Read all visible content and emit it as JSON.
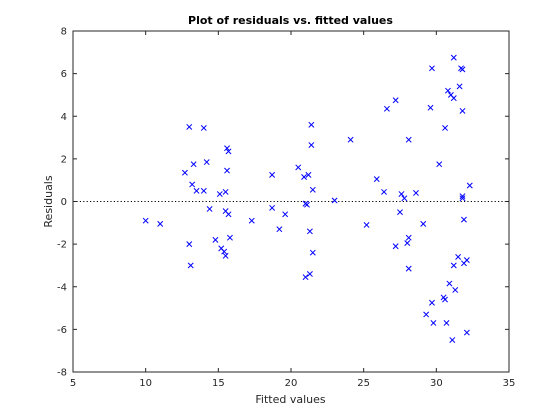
{
  "chart_data": {
    "type": "scatter",
    "title": "Plot of residuals vs. fitted values",
    "xlabel": "Fitted values",
    "ylabel": "Residuals",
    "xlim": [
      5,
      35
    ],
    "ylim": [
      -8,
      8
    ],
    "xticks": [
      "5",
      "10",
      "15",
      "20",
      "25",
      "30",
      "35"
    ],
    "yticks": [
      "-8",
      "-6",
      "-4",
      "-2",
      "0",
      "2",
      "4",
      "6",
      "8"
    ],
    "grid": false,
    "marker": "x",
    "marker_color": "#0000ff",
    "reference_line": {
      "y": 0,
      "style": "dotted",
      "color": "#000000"
    },
    "points": [
      [
        10.0,
        -0.9
      ],
      [
        11.0,
        -1.05
      ],
      [
        12.7,
        1.35
      ],
      [
        13.0,
        3.5
      ],
      [
        13.0,
        -2.0
      ],
      [
        13.1,
        -3.0
      ],
      [
        13.2,
        0.8
      ],
      [
        13.3,
        1.75
      ],
      [
        13.5,
        0.5
      ],
      [
        14.0,
        3.45
      ],
      [
        14.0,
        0.5
      ],
      [
        14.2,
        1.85
      ],
      [
        14.4,
        -0.35
      ],
      [
        14.8,
        -1.8
      ],
      [
        15.1,
        0.35
      ],
      [
        15.2,
        -2.2
      ],
      [
        15.4,
        -2.35
      ],
      [
        15.5,
        0.45
      ],
      [
        15.5,
        -0.45
      ],
      [
        15.5,
        -2.55
      ],
      [
        15.6,
        1.45
      ],
      [
        15.6,
        2.5
      ],
      [
        15.7,
        2.35
      ],
      [
        15.7,
        -0.6
      ],
      [
        15.8,
        -1.7
      ],
      [
        17.3,
        -0.9
      ],
      [
        18.7,
        1.25
      ],
      [
        18.7,
        -0.3
      ],
      [
        19.2,
        -1.3
      ],
      [
        19.6,
        -0.6
      ],
      [
        20.5,
        1.6
      ],
      [
        20.9,
        1.15
      ],
      [
        21.0,
        -0.1
      ],
      [
        21.0,
        -3.55
      ],
      [
        21.1,
        -0.15
      ],
      [
        21.2,
        1.25
      ],
      [
        21.3,
        -1.4
      ],
      [
        21.3,
        -3.4
      ],
      [
        21.4,
        3.6
      ],
      [
        21.4,
        2.65
      ],
      [
        21.5,
        0.55
      ],
      [
        21.5,
        -2.4
      ],
      [
        23.0,
        0.05
      ],
      [
        24.1,
        2.9
      ],
      [
        25.2,
        -1.1
      ],
      [
        25.9,
        1.05
      ],
      [
        26.4,
        0.45
      ],
      [
        26.6,
        4.35
      ],
      [
        27.2,
        4.75
      ],
      [
        27.2,
        -2.1
      ],
      [
        27.5,
        -0.5
      ],
      [
        27.6,
        0.35
      ],
      [
        27.8,
        0.15
      ],
      [
        28.0,
        -1.95
      ],
      [
        28.1,
        2.9
      ],
      [
        28.1,
        -1.7
      ],
      [
        28.1,
        -3.15
      ],
      [
        28.6,
        0.4
      ],
      [
        29.1,
        -1.05
      ],
      [
        29.3,
        -5.3
      ],
      [
        29.6,
        4.4
      ],
      [
        29.7,
        6.25
      ],
      [
        29.7,
        -4.75
      ],
      [
        29.8,
        -5.7
      ],
      [
        30.2,
        1.75
      ],
      [
        30.5,
        -4.5
      ],
      [
        30.6,
        3.45
      ],
      [
        30.6,
        -4.6
      ],
      [
        30.7,
        -5.7
      ],
      [
        30.8,
        5.2
      ],
      [
        30.9,
        -3.85
      ],
      [
        31.0,
        5.0
      ],
      [
        31.1,
        -6.5
      ],
      [
        31.2,
        6.75
      ],
      [
        31.2,
        4.85
      ],
      [
        31.2,
        -3.0
      ],
      [
        31.3,
        -4.15
      ],
      [
        31.5,
        -2.6
      ],
      [
        31.6,
        5.4
      ],
      [
        31.7,
        6.25
      ],
      [
        31.8,
        6.2
      ],
      [
        31.8,
        4.25
      ],
      [
        31.8,
        0.25
      ],
      [
        31.8,
        0.15
      ],
      [
        31.9,
        -0.85
      ],
      [
        31.9,
        -2.9
      ],
      [
        32.1,
        -2.75
      ],
      [
        32.1,
        -6.15
      ],
      [
        32.3,
        0.75
      ]
    ]
  }
}
